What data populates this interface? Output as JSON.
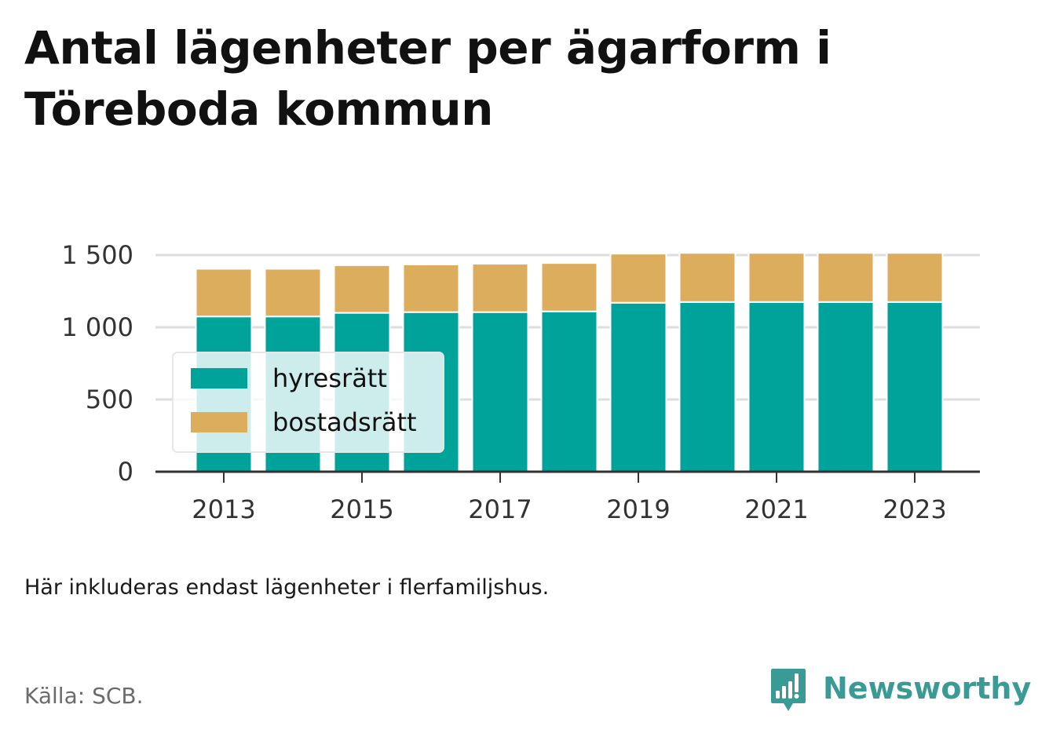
{
  "title": "Antal lägenheter per ägarform i Töreboda kommun",
  "note": "Här inkluderas endast lägenheter i flerfamiljshus.",
  "source": "Källa: SCB.",
  "brand": {
    "name": "Newsworthy",
    "icon": "newsworthy-logo-icon",
    "color": "#3a9a96"
  },
  "colors": {
    "hyresratt": "#00a39a",
    "bostadsratt": "#dbad5c",
    "grid": "#dddddd",
    "axis": "#333333"
  },
  "chart_data": {
    "type": "bar",
    "stacked": true,
    "title": "Antal lägenheter per ägarform i Töreboda kommun",
    "xlabel": "",
    "ylabel": "",
    "categories": [
      2013,
      2014,
      2015,
      2016,
      2017,
      2018,
      2019,
      2020,
      2021,
      2022,
      2023
    ],
    "x_tick_labels": [
      "2013",
      "2015",
      "2017",
      "2019",
      "2021",
      "2023"
    ],
    "y_ticks": [
      0,
      500,
      1000,
      1500
    ],
    "y_tick_labels": [
      "0",
      "500",
      "1 000",
      "1 500"
    ],
    "ylim": [
      0,
      1500
    ],
    "grid": true,
    "legend_position": "left",
    "series": [
      {
        "name": "hyresrätt",
        "color": "#00a39a",
        "values": [
          1075,
          1075,
          1100,
          1105,
          1105,
          1110,
          1170,
          1175,
          1175,
          1175,
          1175
        ]
      },
      {
        "name": "bostadsrätt",
        "color": "#dbad5c",
        "values": [
          330,
          330,
          330,
          330,
          335,
          335,
          340,
          340,
          340,
          340,
          340
        ]
      }
    ]
  }
}
